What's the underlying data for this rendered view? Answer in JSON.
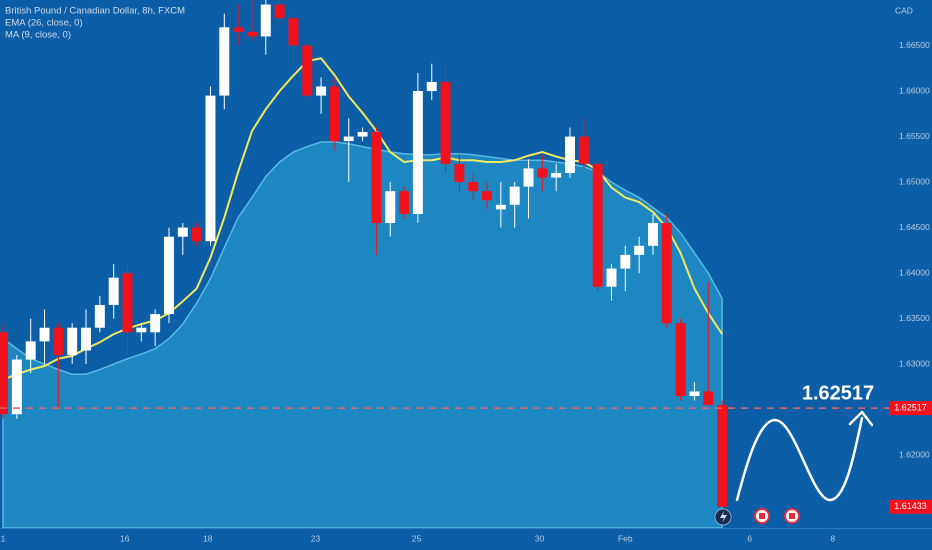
{
  "chart_data": {
    "type": "candlestick",
    "title": "British Pound / Canadian Dollar, 8h, FXCM",
    "currency": "CAD",
    "up_color": "#ffffff",
    "down_color": "#f0131e",
    "x": [
      0,
      1,
      2,
      3,
      4,
      5,
      6,
      7,
      8,
      9,
      10,
      11,
      12,
      13,
      14,
      15,
      16,
      17,
      18,
      19,
      20,
      21,
      22,
      23,
      24,
      25,
      26,
      27,
      28,
      29,
      30,
      31,
      32,
      33,
      34,
      35,
      36,
      37,
      38,
      39,
      40,
      41,
      42,
      43,
      44,
      45,
      46,
      47,
      48,
      49,
      50,
      51,
      52
    ],
    "open": [
      1.6335,
      1.6245,
      1.6305,
      1.6325,
      1.634,
      1.631,
      1.6315,
      1.634,
      1.6365,
      1.64,
      1.6335,
      1.6335,
      1.6355,
      1.644,
      1.645,
      1.6435,
      1.6595,
      1.667,
      1.6665,
      1.666,
      1.6695,
      1.668,
      1.665,
      1.6595,
      1.6605,
      1.6545,
      1.655,
      1.6555,
      1.6455,
      1.649,
      1.6465,
      1.66,
      1.661,
      1.652,
      1.65,
      1.649,
      1.647,
      1.6475,
      1.6495,
      1.6515,
      1.6505,
      1.651,
      1.655,
      1.652,
      1.6385,
      1.6405,
      1.642,
      1.643,
      1.6455,
      1.6345,
      1.6265,
      1.627,
      1.6255
    ],
    "high": [
      1.6345,
      1.631,
      1.635,
      1.636,
      1.6345,
      1.6345,
      1.636,
      1.6375,
      1.641,
      1.641,
      1.6345,
      1.636,
      1.645,
      1.6455,
      1.6455,
      1.6605,
      1.6685,
      1.6695,
      1.67,
      1.6705,
      1.67,
      1.6685,
      1.6655,
      1.6615,
      1.6615,
      1.657,
      1.656,
      1.656,
      1.65,
      1.6495,
      1.662,
      1.663,
      1.663,
      1.653,
      1.651,
      1.65,
      1.65,
      1.65,
      1.6525,
      1.653,
      1.652,
      1.656,
      1.657,
      1.6525,
      1.641,
      1.643,
      1.644,
      1.6465,
      1.6465,
      1.635,
      1.628,
      1.639,
      1.626
    ],
    "low": [
      1.624,
      1.624,
      1.629,
      1.63,
      1.625,
      1.63,
      1.63,
      1.6335,
      1.635,
      1.631,
      1.6325,
      1.632,
      1.6345,
      1.642,
      1.643,
      1.643,
      1.658,
      1.665,
      1.6655,
      1.664,
      1.667,
      1.663,
      1.659,
      1.6575,
      1.6535,
      1.65,
      1.6545,
      1.642,
      1.644,
      1.646,
      1.6455,
      1.659,
      1.651,
      1.649,
      1.648,
      1.647,
      1.645,
      1.645,
      1.646,
      1.649,
      1.649,
      1.6505,
      1.6515,
      1.638,
      1.637,
      1.638,
      1.64,
      1.642,
      1.634,
      1.626,
      1.626,
      1.6255,
      1.6143
    ],
    "close": [
      1.6245,
      1.6305,
      1.6325,
      1.634,
      1.631,
      1.634,
      1.634,
      1.6365,
      1.6395,
      1.6335,
      1.634,
      1.6355,
      1.644,
      1.645,
      1.6435,
      1.6595,
      1.667,
      1.6665,
      1.666,
      1.6695,
      1.668,
      1.665,
      1.6595,
      1.6605,
      1.6545,
      1.655,
      1.6555,
      1.6455,
      1.649,
      1.6465,
      1.66,
      1.661,
      1.652,
      1.65,
      1.649,
      1.648,
      1.6475,
      1.6495,
      1.6515,
      1.6505,
      1.651,
      1.655,
      1.652,
      1.6385,
      1.6405,
      1.642,
      1.643,
      1.6455,
      1.6345,
      1.6265,
      1.627,
      1.6255,
      1.61433
    ],
    "series": [
      {
        "name": "EMA (26, close, 0)",
        "color": "#2196c9",
        "style": "area",
        "values": [
          1.6328,
          1.6317,
          1.6306,
          1.63,
          1.6294,
          1.6289,
          1.6289,
          1.6294,
          1.63,
          1.6306,
          1.6311,
          1.6317,
          1.6328,
          1.6344,
          1.6367,
          1.6394,
          1.6428,
          1.6461,
          1.6483,
          1.6506,
          1.6522,
          1.6533,
          1.6539,
          1.6544,
          1.6544,
          1.6542,
          1.6539,
          1.6536,
          1.6533,
          1.6531,
          1.653,
          1.653,
          1.6531,
          1.6531,
          1.653,
          1.6528,
          1.6526,
          1.6524,
          1.6524,
          1.6524,
          1.6522,
          1.652,
          1.6517,
          1.6511,
          1.65,
          1.6491,
          1.6483,
          1.6472,
          1.6461,
          1.6444,
          1.6422,
          1.64,
          1.6372
        ]
      },
      {
        "name": "MA (9, close, 0)",
        "color": "#f2ea5c",
        "style": "line",
        "values": [
          1.6283,
          1.6289,
          1.6294,
          1.6298,
          1.6306,
          1.6309,
          1.6317,
          1.6324,
          1.6333,
          1.6339,
          1.6344,
          1.6348,
          1.6356,
          1.6369,
          1.6383,
          1.6417,
          1.6461,
          1.6511,
          1.6556,
          1.658,
          1.66,
          1.6617,
          1.6633,
          1.6636,
          1.6617,
          1.6594,
          1.6576,
          1.6556,
          1.6533,
          1.6522,
          1.6524,
          1.6524,
          1.6527,
          1.6524,
          1.6524,
          1.6522,
          1.6522,
          1.6524,
          1.6529,
          1.6533,
          1.6528,
          1.6524,
          1.6522,
          1.6513,
          1.6494,
          1.6483,
          1.6478,
          1.6467,
          1.645,
          1.6422,
          1.6383,
          1.6356,
          1.6333
        ]
      }
    ],
    "price_line": 1.62517,
    "xlim": [
      -0.22,
      64.14
    ],
    "ylim": [
      1.612,
      1.67
    ],
    "xticks": [
      {
        "value": 0,
        "label": "1"
      },
      {
        "value": 8.8,
        "label": "16"
      },
      {
        "value": 14.8,
        "label": "18"
      },
      {
        "value": 22.6,
        "label": "23"
      },
      {
        "value": 29.9,
        "label": "25"
      },
      {
        "value": 38.8,
        "label": "30"
      },
      {
        "value": 45,
        "label": "Feb"
      },
      {
        "value": 54,
        "label": "6"
      },
      {
        "value": 60,
        "label": "8"
      }
    ],
    "yticks": [
      {
        "value": 1.62,
        "label": "1.62000"
      },
      {
        "value": 1.63,
        "label": "1.63000"
      },
      {
        "value": 1.635,
        "label": "1.63500"
      },
      {
        "value": 1.64,
        "label": "1.64000"
      },
      {
        "value": 1.645,
        "label": "1.64500"
      },
      {
        "value": 1.65,
        "label": "1.65000"
      },
      {
        "value": 1.655,
        "label": "1.65500"
      },
      {
        "value": 1.66,
        "label": "1.66000"
      },
      {
        "value": 1.665,
        "label": "1.66500"
      }
    ],
    "grid": false
  }
}
